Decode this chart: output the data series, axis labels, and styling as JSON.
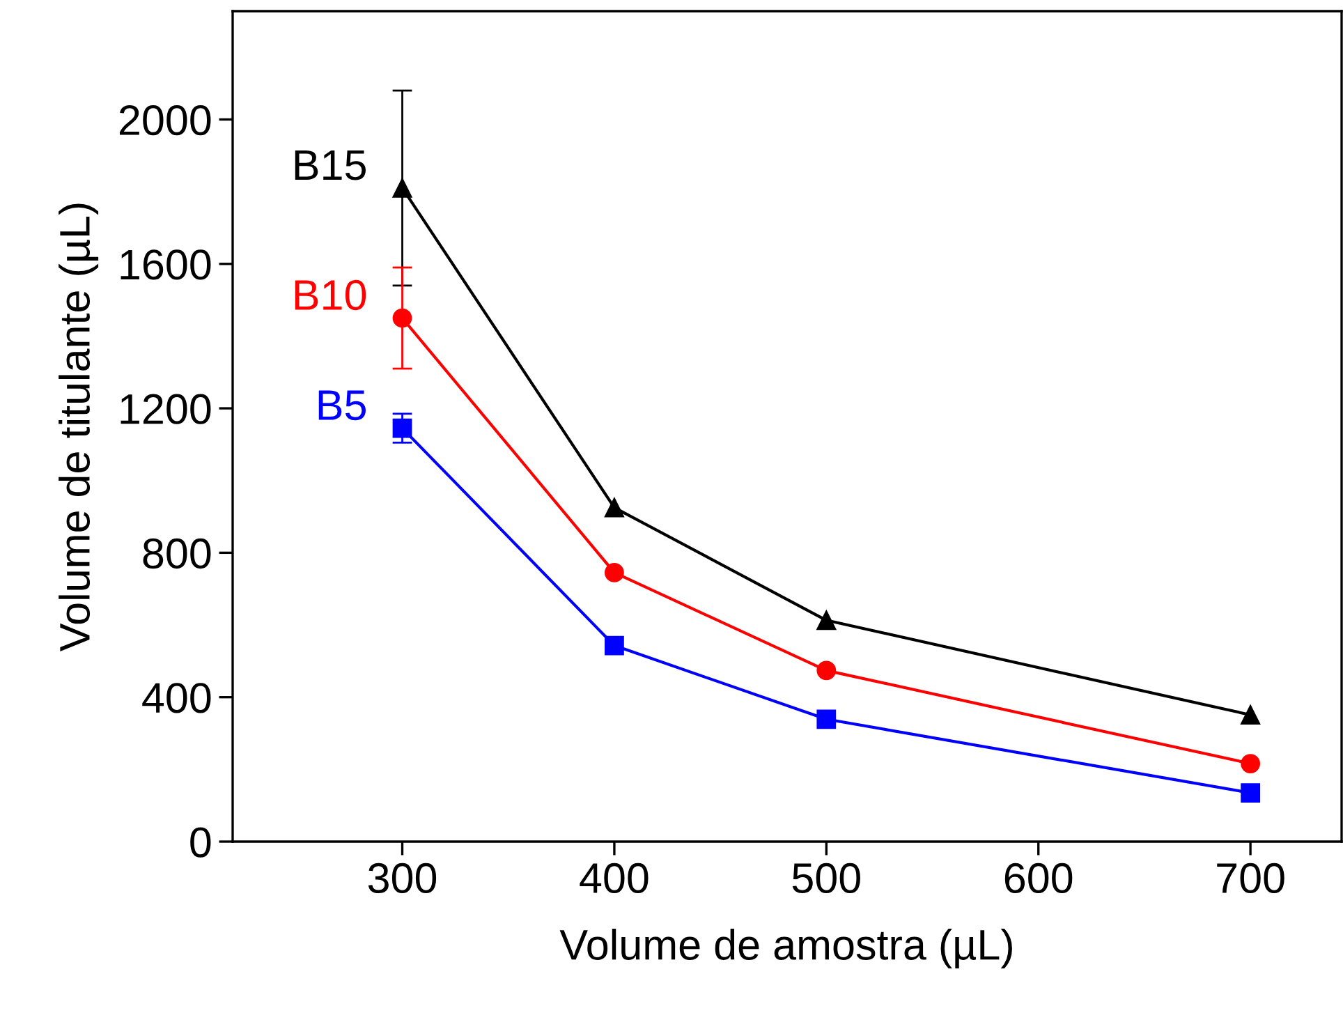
{
  "chart_data": {
    "type": "line",
    "xlabel": "Volume de amostra (µL)",
    "ylabel": "Volume de titulante (µL)",
    "x": [
      300,
      400,
      500,
      700
    ],
    "xlim": [
      220,
      743
    ],
    "xticks": [
      300,
      400,
      500,
      600,
      700
    ],
    "ylim": [
      0,
      2300
    ],
    "yticks": [
      0,
      400,
      800,
      1200,
      1600,
      2000
    ],
    "grid": false,
    "series": [
      {
        "name": "B15",
        "color": "#000000",
        "marker": "triangle",
        "values": [
          1810,
          925,
          613,
          351
        ],
        "errors": [
          270,
          null,
          null,
          null
        ]
      },
      {
        "name": "B10",
        "color": "#ff0000",
        "marker": "circle",
        "values": [
          1450,
          745,
          474,
          216
        ],
        "errors": [
          140,
          null,
          null,
          null
        ]
      },
      {
        "name": "B5",
        "color": "#0000ff",
        "marker": "square",
        "values": [
          1145,
          543,
          339,
          135
        ],
        "errors": [
          40,
          null,
          null,
          null
        ]
      }
    ]
  }
}
